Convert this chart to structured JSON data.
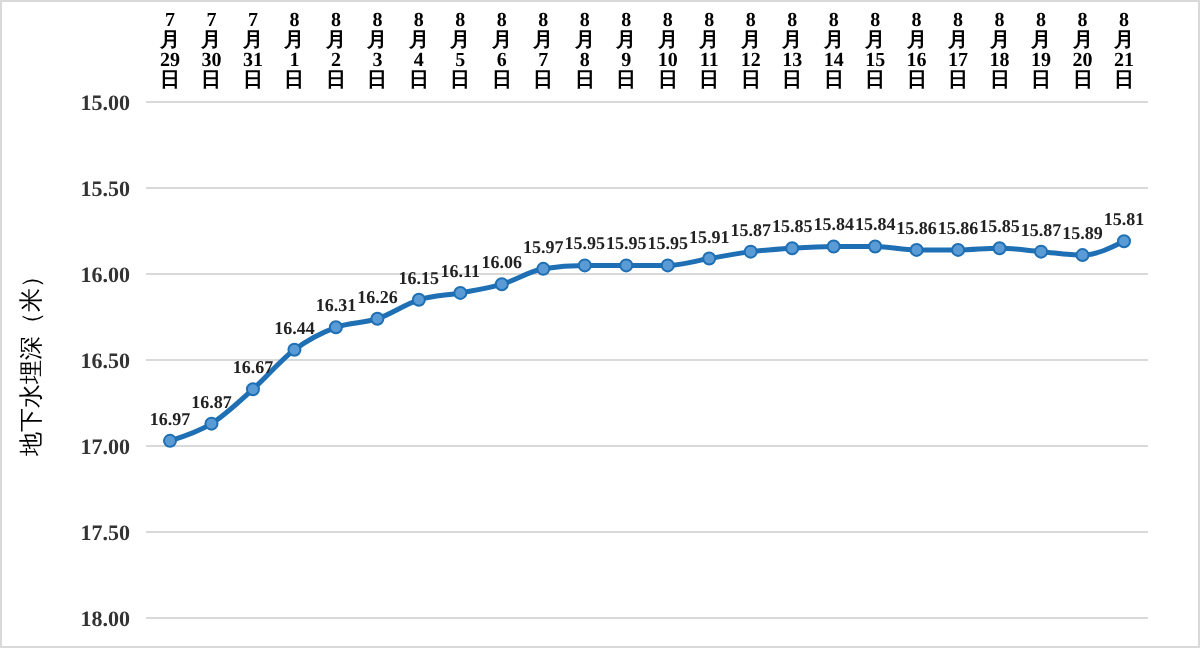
{
  "chart_data": {
    "type": "line",
    "ylabel": "地下水埋深（米）",
    "categories": [
      "7月29日",
      "7月30日",
      "7月31日",
      "8月1日",
      "8月2日",
      "8月3日",
      "8月4日",
      "8月5日",
      "8月6日",
      "8月7日",
      "8月8日",
      "8月9日",
      "8月10日",
      "8月11日",
      "8月12日",
      "8月13日",
      "8月14日",
      "8月15日",
      "8月16日",
      "8月17日",
      "8月18日",
      "8月19日",
      "8月20日",
      "8月21日"
    ],
    "series": [
      {
        "color": "#1f6fb4",
        "values": [
          16.97,
          16.87,
          16.67,
          16.44,
          16.31,
          16.26,
          16.15,
          16.11,
          16.06,
          15.97,
          15.95,
          15.95,
          15.95,
          15.91,
          15.87,
          15.85,
          15.84,
          15.84,
          15.86,
          15.86,
          15.85,
          15.87,
          15.89,
          15.81
        ]
      }
    ],
    "ylim": [
      18,
      15
    ],
    "yticks": [
      {
        "value": 15,
        "label": "15.00"
      },
      {
        "value": 15.5,
        "label": "15.50"
      },
      {
        "value": 16,
        "label": "16.00"
      },
      {
        "value": 16.5,
        "label": "16.50"
      },
      {
        "value": 17,
        "label": "17.00"
      },
      {
        "value": 17.5,
        "label": "17.50"
      },
      {
        "value": 18,
        "label": "18.00"
      }
    ],
    "grid": "y",
    "marker": "circle",
    "line_style": "solid",
    "data_labels": true
  }
}
